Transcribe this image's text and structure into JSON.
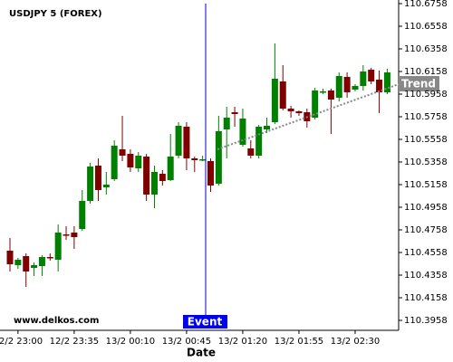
{
  "chart_data": {
    "type": "candlestick",
    "title": "USDJPY 5 (FOREX)",
    "x_label": "Date",
    "categories": [
      null,
      "12/2 23:00",
      null,
      null,
      null,
      null,
      null,
      null,
      "12/2 23:35",
      null,
      null,
      null,
      null,
      null,
      null,
      "13/2 00:10",
      null,
      null,
      null,
      null,
      null,
      null,
      "13/2 00:45",
      null,
      null,
      null,
      null,
      null,
      null,
      "13/2 01:20",
      null,
      null,
      null,
      null,
      null,
      null,
      "13/2 01:55",
      null,
      null,
      null,
      null,
      null,
      null,
      "13/2 02:30",
      null,
      null,
      null,
      null
    ],
    "open": [
      110.4574,
      110.4446,
      110.4526,
      110.4422,
      110.4438,
      110.4518,
      110.4494,
      110.4718,
      110.4734,
      110.4766,
      110.5014,
      110.5326,
      110.5134,
      110.5206,
      110.547,
      110.543,
      110.5302,
      110.5406,
      110.507,
      110.5254,
      110.5198,
      110.5414,
      110.567,
      110.539,
      110.5374,
      110.5366,
      110.5166,
      110.5646,
      110.5798,
      110.551,
      110.5478,
      110.5414,
      110.5646,
      110.571,
      110.607,
      110.583,
      110.5806,
      110.5798,
      110.575,
      110.5974,
      110.599,
      110.5926,
      110.611,
      110.5998,
      110.603,
      110.6174,
      110.6086,
      110.5974
    ],
    "high": [
      110.4686,
      110.451,
      110.455,
      110.447,
      110.4534,
      110.455,
      110.4806,
      110.479,
      110.479,
      110.511,
      110.535,
      110.539,
      110.527,
      110.555,
      110.5766,
      110.547,
      110.5446,
      110.543,
      110.5326,
      110.5286,
      110.5606,
      110.571,
      110.571,
      110.5406,
      110.5414,
      110.539,
      110.5766,
      110.5846,
      110.5846,
      110.583,
      110.555,
      110.5686,
      110.575,
      110.6406,
      110.6214,
      110.5854,
      110.5814,
      110.583,
      110.6014,
      110.6006,
      110.6006,
      110.615,
      110.615,
      110.6046,
      110.6214,
      110.619,
      110.6166,
      110.6182
    ],
    "low": [
      110.439,
      110.4414,
      110.4254,
      110.435,
      110.435,
      110.4486,
      110.439,
      110.467,
      110.459,
      110.475,
      110.499,
      110.5014,
      110.507,
      110.519,
      110.5366,
      110.527,
      110.527,
      110.5014,
      110.495,
      110.515,
      110.519,
      110.539,
      110.5286,
      110.527,
      110.5366,
      110.5094,
      110.515,
      110.539,
      110.567,
      110.5494,
      110.539,
      110.539,
      110.5614,
      110.5694,
      110.5814,
      110.575,
      110.5766,
      110.5662,
      110.5734,
      110.5958,
      110.5606,
      110.5894,
      110.5926,
      110.5982,
      110.599,
      110.6046,
      110.579,
      110.5958
    ],
    "close": [
      110.4454,
      110.4494,
      110.439,
      110.4446,
      110.4518,
      110.451,
      110.4734,
      110.471,
      110.4694,
      110.5014,
      110.5318,
      110.511,
      110.5158,
      110.5502,
      110.5414,
      110.531,
      110.5414,
      110.507,
      110.527,
      110.519,
      110.5406,
      110.5678,
      110.539,
      110.5374,
      110.5382,
      110.515,
      110.563,
      110.575,
      110.5782,
      110.5742,
      110.5414,
      110.567,
      110.5678,
      110.6094,
      110.583,
      110.5806,
      110.579,
      110.5718,
      110.599,
      110.5982,
      110.591,
      110.6118,
      110.5974,
      110.603,
      110.6158,
      110.607,
      110.5974,
      110.615
    ],
    "up_color": "#008000",
    "down_color": "#800000",
    "ylim": [
      110.387,
      110.679
    ],
    "yticks": [
      110.3958,
      110.4158,
      110.4358,
      110.4558,
      110.4758,
      110.4958,
      110.5158,
      110.5358,
      110.5558,
      110.5758,
      110.5958,
      110.6158,
      110.6358,
      110.6558,
      110.6758
    ],
    "event_label": "Event",
    "trend_label": "Trend",
    "watermark": "www.delkos.com"
  }
}
